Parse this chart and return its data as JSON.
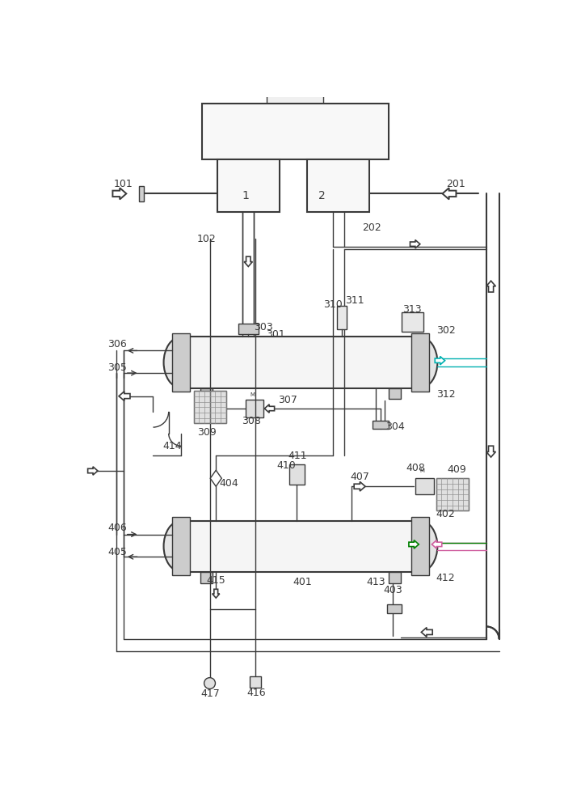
{
  "bg": "#ffffff",
  "lc": "#3a3a3a",
  "lc_light": "#707070",
  "lc_cyan": "#00b0b0",
  "lc_green": "#008000",
  "lc_pink": "#d060a0",
  "fc_light": "#f0f0f0",
  "fc_med": "#d8d8d8",
  "fc_dark": "#b8b8b8",
  "fig_w": 7.19,
  "fig_h": 10.0,
  "dpi": 100
}
